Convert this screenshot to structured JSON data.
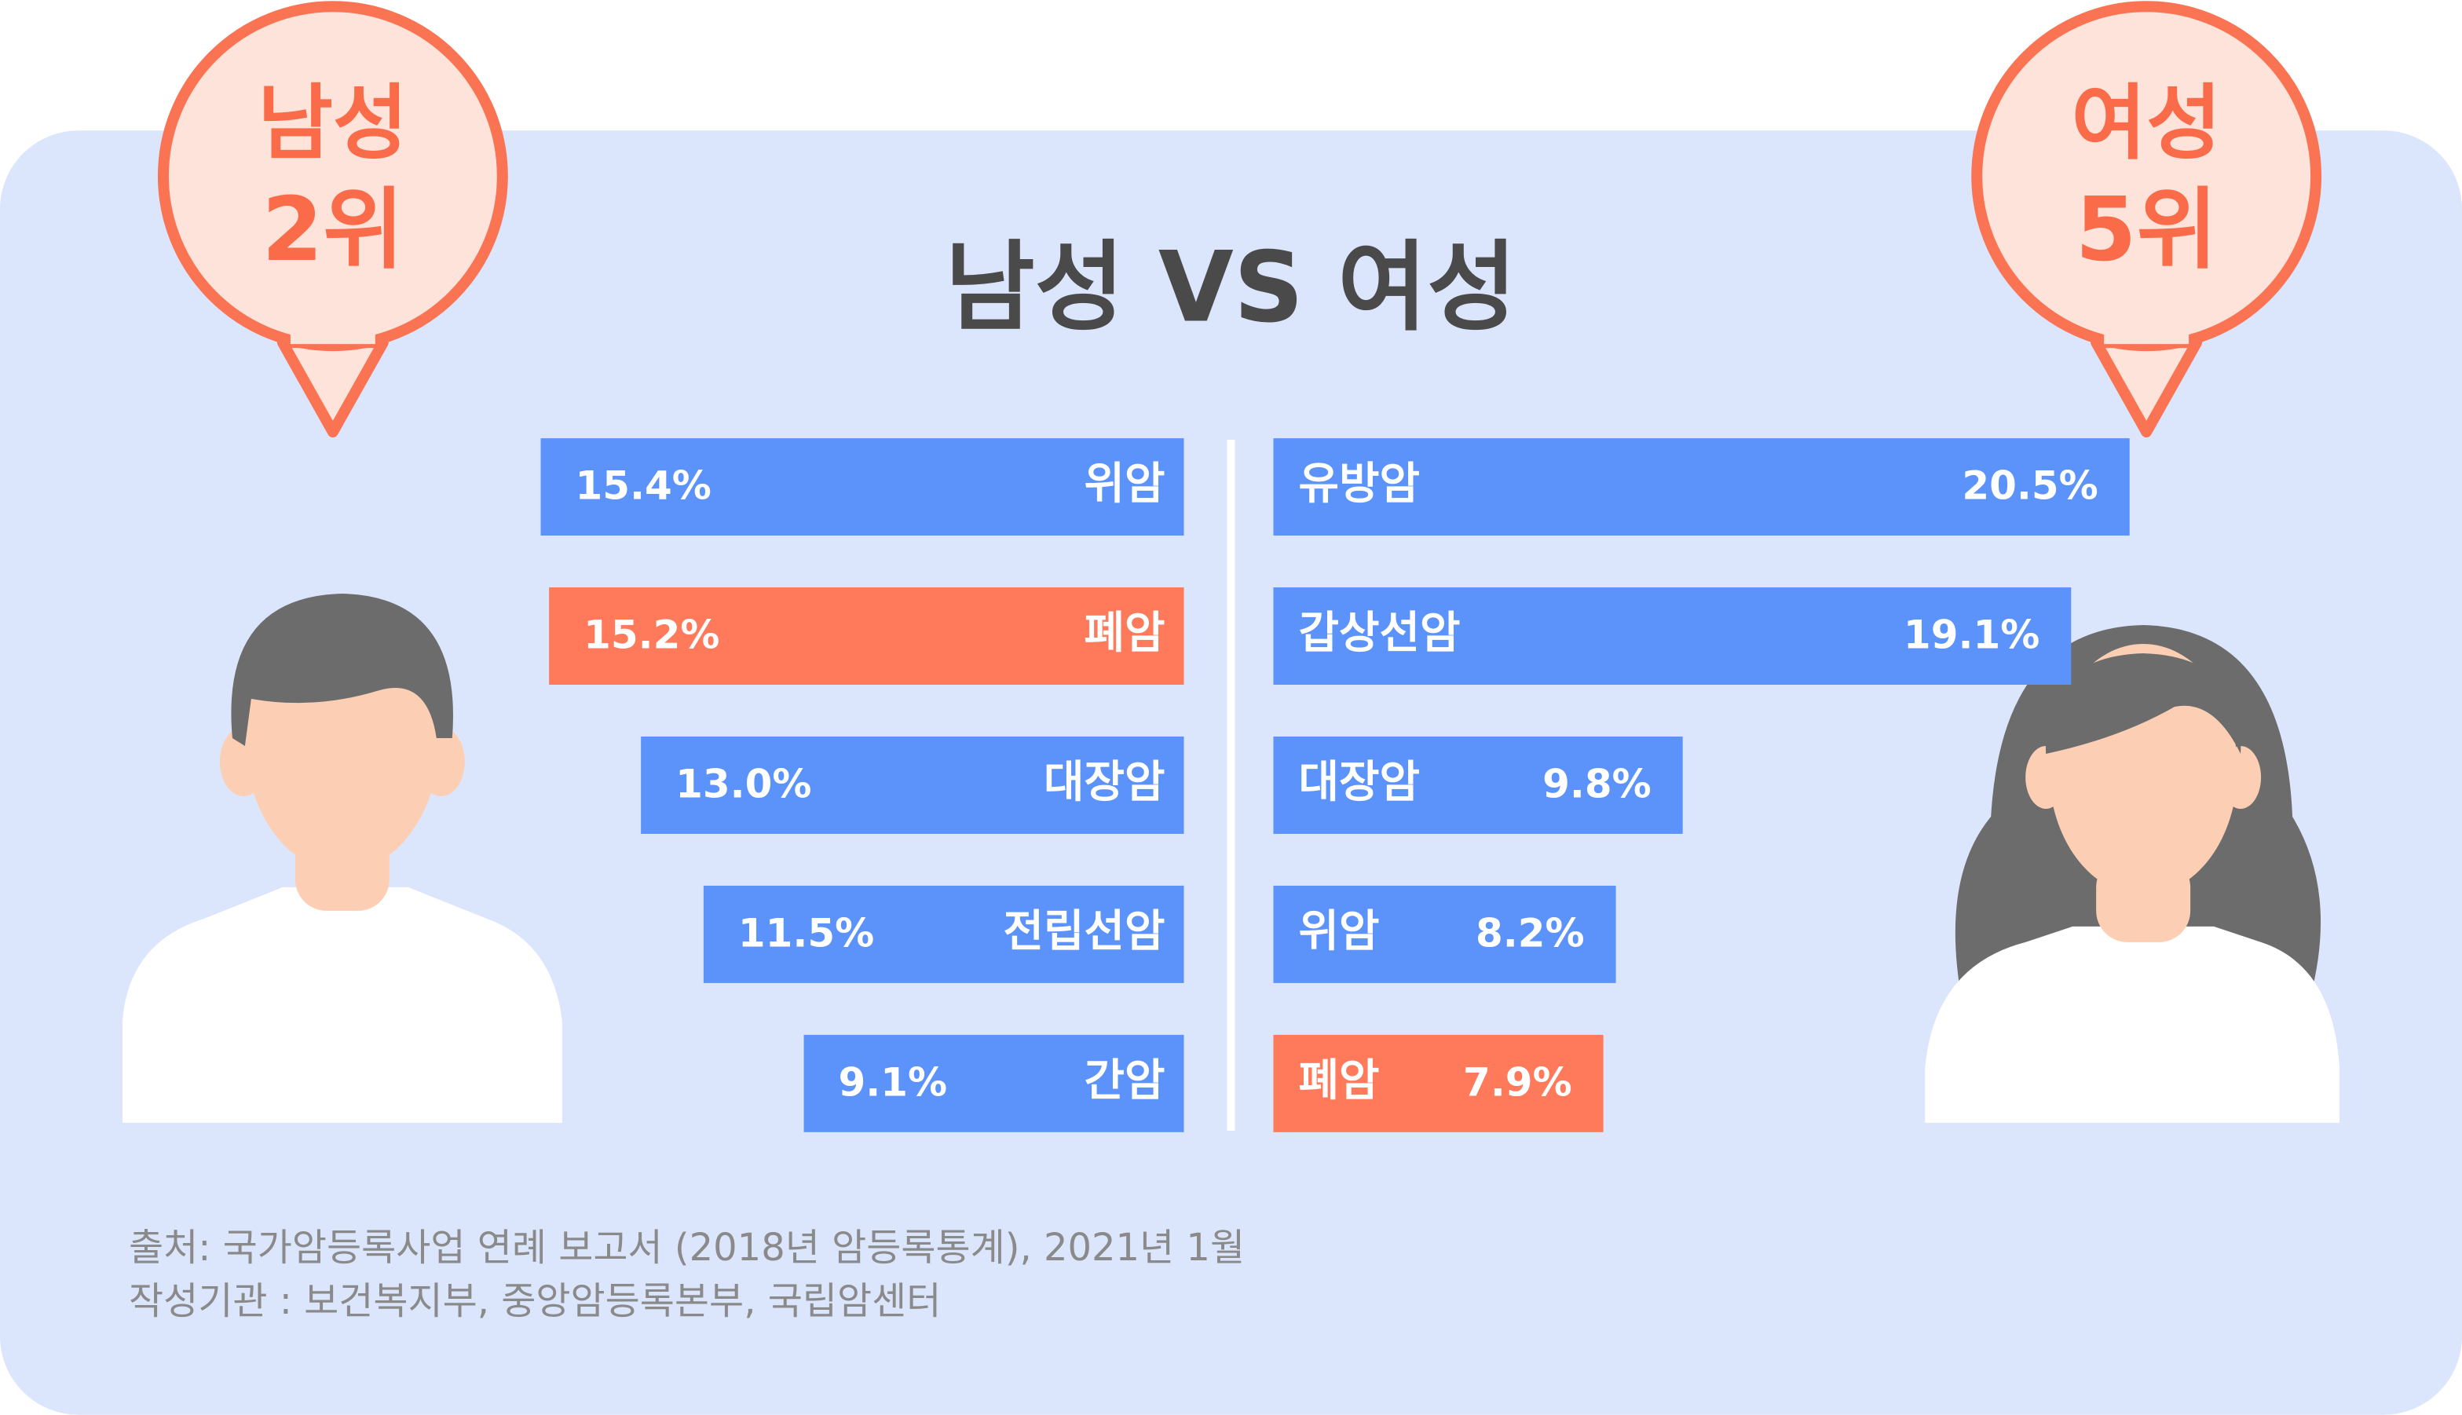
{
  "title": "남성 VS 여성",
  "badges": [
    {
      "line1": "남성",
      "line2": "2위"
    },
    {
      "line1": "여성",
      "line2": "5위"
    }
  ],
  "chart_data": [
    {
      "type": "bar",
      "orientation": "horizontal",
      "direction": "left",
      "categories": [
        "위암",
        "폐암",
        "대장암",
        "전립선암",
        "간암"
      ],
      "values": [
        15.4,
        15.2,
        13.0,
        11.5,
        9.1
      ],
      "value_labels": [
        "15.4%",
        "15.2%",
        "13.0%",
        "11.5%",
        "9.1%"
      ],
      "colors": [
        "#5b93fb",
        "#fe7a5a",
        "#5b93fb",
        "#5b93fb",
        "#5b93fb"
      ]
    },
    {
      "type": "bar",
      "orientation": "horizontal",
      "direction": "right",
      "categories": [
        "유방암",
        "갑상선암",
        "대장암",
        "위암",
        "폐암"
      ],
      "values": [
        20.5,
        19.1,
        9.8,
        8.2,
        7.9
      ],
      "value_labels": [
        "20.5%",
        "19.1%",
        "9.8%",
        "8.2%",
        "7.9%"
      ],
      "colors": [
        "#5b93fb",
        "#5b93fb",
        "#5b93fb",
        "#5b93fb",
        "#fe7a5a"
      ]
    }
  ],
  "source": [
    "출처: 국가암등록사업 연례 보고서 (2018년 암등록통계), 2021년 1월",
    "작성기관 : 보건복지부, 중앙암등록본부, 국립암센터"
  ]
}
